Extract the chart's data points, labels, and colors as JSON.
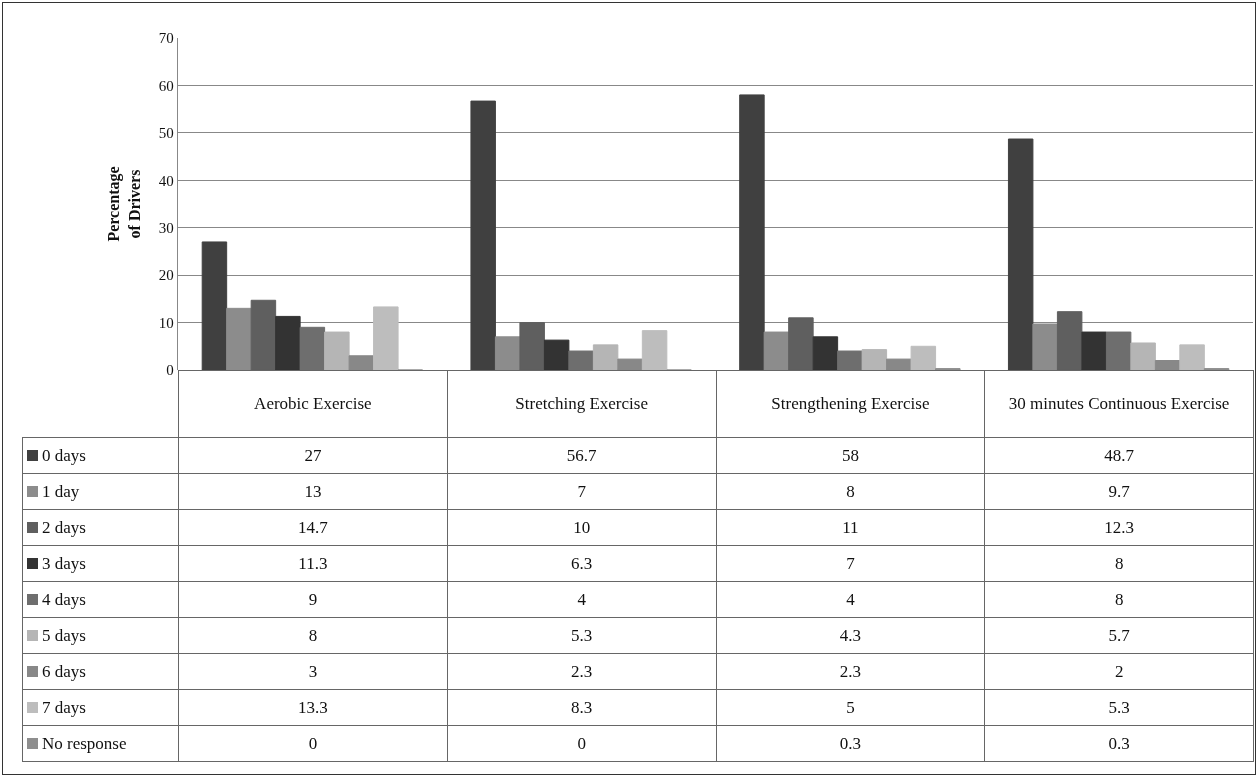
{
  "chart_data": {
    "type": "bar",
    "ylabel": "Percentage of Drivers",
    "categories": [
      "Aerobic Exercise",
      "Stretching Exercise",
      "Strengthening Exercise",
      "30 minutes Continuous Exercise"
    ],
    "series": [
      {
        "name": "0 days",
        "color": "#404040",
        "values": [
          27,
          56.7,
          58,
          48.7
        ]
      },
      {
        "name": "1 day",
        "color": "#8c8c8c",
        "values": [
          13,
          7,
          8,
          9.7
        ]
      },
      {
        "name": "2 days",
        "color": "#5f5f5f",
        "values": [
          14.7,
          10,
          11,
          12.3
        ]
      },
      {
        "name": "3 days",
        "color": "#333333",
        "values": [
          11.3,
          6.3,
          7,
          8
        ]
      },
      {
        "name": "4 days",
        "color": "#6e6e6e",
        "values": [
          9,
          4,
          4,
          8
        ]
      },
      {
        "name": "5 days",
        "color": "#b5b5b5",
        "values": [
          8,
          5.3,
          4.3,
          5.7
        ]
      },
      {
        "name": "6 days",
        "color": "#888888",
        "values": [
          3,
          2.3,
          2.3,
          2
        ]
      },
      {
        "name": "7 days",
        "color": "#bdbdbd",
        "values": [
          13.3,
          8.3,
          5,
          5.3
        ]
      },
      {
        "name": "No response",
        "color": "#8e8e8e",
        "values": [
          0,
          0,
          0.3,
          0.3
        ]
      }
    ],
    "ylim": [
      0,
      70
    ],
    "yticks": [
      0,
      10,
      20,
      30,
      40,
      50,
      60,
      70
    ],
    "grid": "y",
    "legend": "bottom left",
    "data_labels": true
  }
}
